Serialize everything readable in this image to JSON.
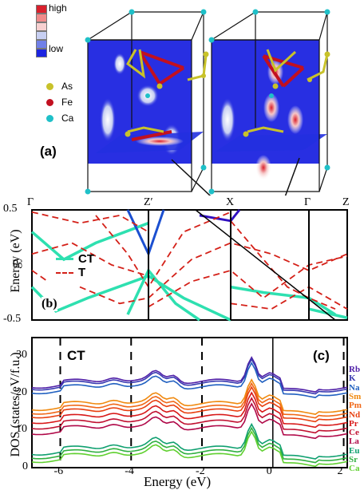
{
  "panel_a": {
    "label": "(a)",
    "legend_scale": {
      "high": "high",
      "low": "low",
      "colors": [
        "#d9202c",
        "#f08a8a",
        "#f7d0d0",
        "#c7cff2",
        "#7080e8",
        "#1c24e0"
      ]
    },
    "atoms": [
      {
        "label": "As",
        "color": "#c8c22a"
      },
      {
        "label": "Fe",
        "color": "#c21020"
      },
      {
        "label": "Ca",
        "color": "#1fc0c8"
      }
    ]
  },
  "panel_b": {
    "label": "(b)",
    "ylabel": "Energy (eV)",
    "kpoints": [
      "Γ",
      "Z′",
      "X",
      "Γ",
      "Z"
    ],
    "yticks": [
      "0.5",
      "0",
      "-0.5"
    ],
    "legend": [
      {
        "label": "CT",
        "color": "#2ee0b0",
        "style": "solid"
      },
      {
        "label": "T",
        "color": "#d42018",
        "style": "dashed"
      }
    ]
  },
  "panel_c": {
    "label": "(c)",
    "inset": "CT",
    "ylabel": "DOS (states/eV/f.u.)",
    "xlabel": "Energy (eV)",
    "xticks": [
      "-6",
      "-4",
      "-2",
      "0",
      "2"
    ],
    "yticks": [
      "30",
      "20",
      "10",
      "0"
    ],
    "elements": [
      {
        "label": "Rb",
        "color": "#5020a8"
      },
      {
        "label": "K",
        "color": "#3838b0"
      },
      {
        "label": "Na",
        "color": "#2060c0"
      },
      {
        "label": "Sm",
        "color": "#f08a10"
      },
      {
        "label": "Pm",
        "color": "#f06818"
      },
      {
        "label": "Nd",
        "color": "#e84010"
      },
      {
        "label": "Pr",
        "color": "#d81818"
      },
      {
        "label": "Ce",
        "color": "#c01030"
      },
      {
        "label": "La",
        "color": "#b00848"
      },
      {
        "label": "Eu",
        "color": "#10a070"
      },
      {
        "label": "Sr",
        "color": "#30b040"
      },
      {
        "label": "Ca",
        "color": "#60d030"
      }
    ]
  }
}
